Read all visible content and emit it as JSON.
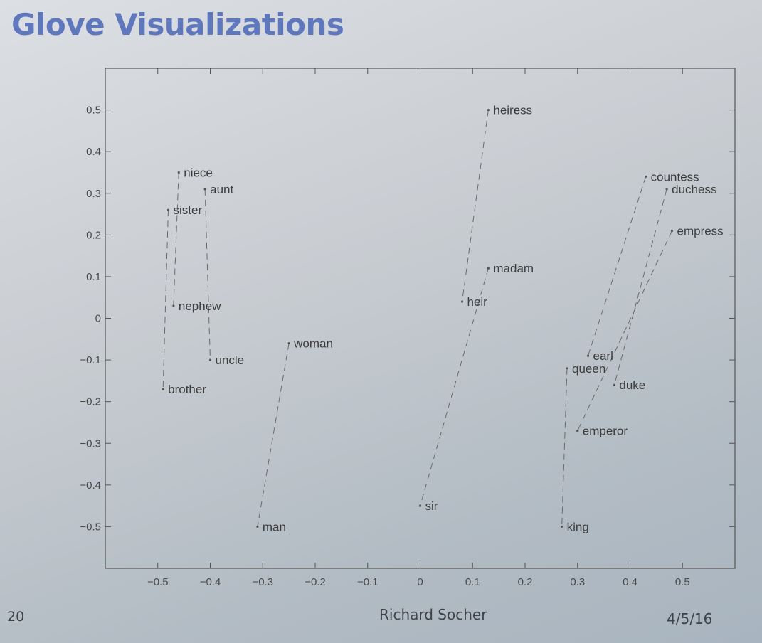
{
  "slide": {
    "title": "Glove Visualizations",
    "number": "20",
    "author": "Richard Socher",
    "date": "4/5/16"
  },
  "chart_data": {
    "type": "scatter",
    "xlim": [
      -0.6,
      0.6
    ],
    "ylim": [
      -0.6,
      0.6
    ],
    "xticks": [
      -0.5,
      -0.4,
      -0.3,
      -0.2,
      -0.1,
      0,
      0.1,
      0.2,
      0.3,
      0.4,
      0.5
    ],
    "xtick_labels": [
      "−0.5",
      "−0.4",
      "−0.3",
      "−0.2",
      "−0.1",
      "0",
      "0.1",
      "0.2",
      "0.3",
      "0.4",
      "0.5"
    ],
    "yticks": [
      0.5,
      0.4,
      0.3,
      0.2,
      0.1,
      0,
      -0.1,
      -0.2,
      -0.3,
      -0.4,
      -0.5
    ],
    "ytick_labels": [
      "0.5",
      "0.4",
      "0.3",
      "0.2",
      "0.1",
      "0",
      "−0.1",
      "−0.2",
      "−0.3",
      "−0.4",
      "−0.5"
    ],
    "grid": false,
    "line_style": "dashed",
    "points": [
      {
        "word": "heiress",
        "x": 0.13,
        "y": 0.5
      },
      {
        "word": "niece",
        "x": -0.46,
        "y": 0.35
      },
      {
        "word": "aunt",
        "x": -0.41,
        "y": 0.31
      },
      {
        "word": "sister",
        "x": -0.48,
        "y": 0.26
      },
      {
        "word": "countess",
        "x": 0.43,
        "y": 0.34
      },
      {
        "word": "duchess",
        "x": 0.47,
        "y": 0.31
      },
      {
        "word": "empress",
        "x": 0.48,
        "y": 0.21
      },
      {
        "word": "madam",
        "x": 0.13,
        "y": 0.12
      },
      {
        "word": "heir",
        "x": 0.08,
        "y": 0.04
      },
      {
        "word": "nephew",
        "x": -0.47,
        "y": 0.03
      },
      {
        "word": "woman",
        "x": -0.25,
        "y": -0.06
      },
      {
        "word": "uncle",
        "x": -0.4,
        "y": -0.1
      },
      {
        "word": "brother",
        "x": -0.49,
        "y": -0.17
      },
      {
        "word": "earl",
        "x": 0.32,
        "y": -0.09
      },
      {
        "word": "queen",
        "x": 0.28,
        "y": -0.12
      },
      {
        "word": "duke",
        "x": 0.37,
        "y": -0.16
      },
      {
        "word": "emperor",
        "x": 0.3,
        "y": -0.27
      },
      {
        "word": "sir",
        "x": 0.0,
        "y": -0.45
      },
      {
        "word": "man",
        "x": -0.31,
        "y": -0.5
      },
      {
        "word": "king",
        "x": 0.27,
        "y": -0.5
      }
    ],
    "pairs": [
      [
        "niece",
        "nephew"
      ],
      [
        "aunt",
        "uncle"
      ],
      [
        "sister",
        "brother"
      ],
      [
        "woman",
        "man"
      ],
      [
        "heiress",
        "heir"
      ],
      [
        "madam",
        "sir"
      ],
      [
        "queen",
        "king"
      ],
      [
        "countess",
        "earl"
      ],
      [
        "duchess",
        "duke"
      ],
      [
        "empress",
        "emperor"
      ]
    ]
  }
}
